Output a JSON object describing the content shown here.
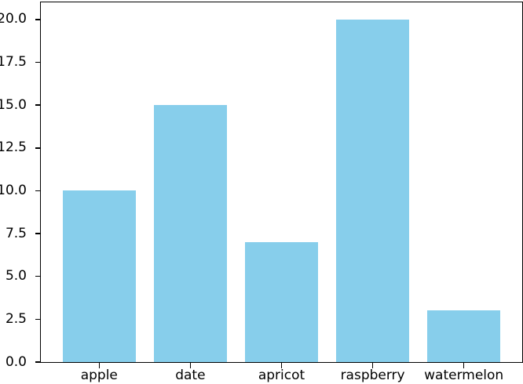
{
  "figure": {
    "background": "#ffffff"
  },
  "chart_data": {
    "type": "bar",
    "categories": [
      "apple",
      "date",
      "apricot",
      "raspberry",
      "watermelon"
    ],
    "values": [
      10,
      15,
      7,
      20,
      3
    ],
    "title": "",
    "xlabel": "",
    "ylabel": "",
    "bar_color": "#87CEEB",
    "axis_color": "#000000",
    "tick_label_color": "#000000",
    "ylim": [
      0,
      21
    ],
    "xlim": [
      -0.64,
      4.64
    ],
    "bar_width": 0.8,
    "yticks": [
      {
        "value": 0,
        "label": "0.0"
      },
      {
        "value": 2.5,
        "label": "2.5"
      },
      {
        "value": 5,
        "label": "5.0"
      },
      {
        "value": 7.5,
        "label": "7.5"
      },
      {
        "value": 10,
        "label": "10.0"
      },
      {
        "value": 12.5,
        "label": "12.5"
      },
      {
        "value": 15,
        "label": "15.0"
      },
      {
        "value": 17.5,
        "label": "17.5"
      },
      {
        "value": 20,
        "label": "20.0"
      }
    ],
    "grid": false,
    "legend": null
  }
}
